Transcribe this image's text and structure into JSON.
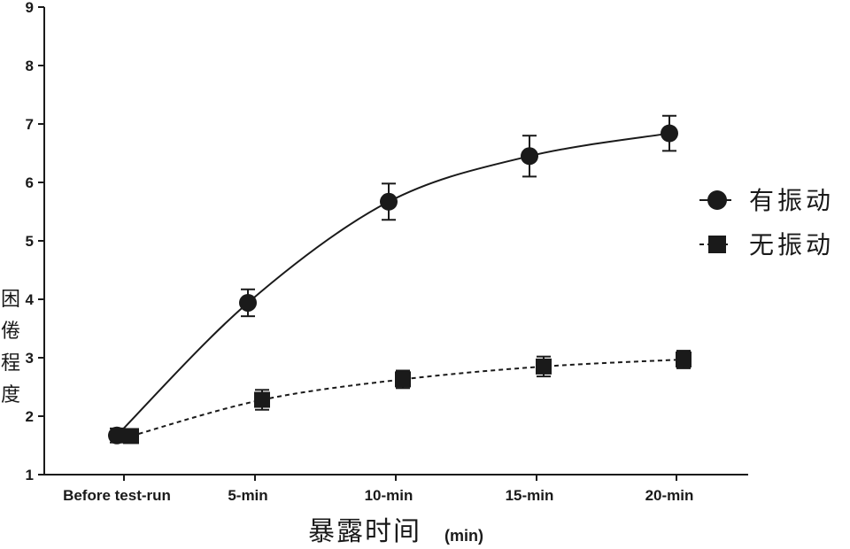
{
  "chart_data": {
    "type": "line",
    "categories": [
      "Before test-run",
      "5-min",
      "10-min",
      "15-min",
      "20-min"
    ],
    "series": [
      {
        "name": "有振动",
        "marker": "circle",
        "line": "solid",
        "values": [
          1.67,
          3.94,
          5.67,
          6.45,
          6.84
        ],
        "error": [
          0.12,
          0.23,
          0.31,
          0.35,
          0.3
        ]
      },
      {
        "name": "无振动",
        "marker": "square",
        "line": "dashed",
        "values": [
          1.66,
          2.28,
          2.63,
          2.85,
          2.97
        ],
        "error": [
          0.1,
          0.17,
          0.15,
          0.17,
          0.15
        ]
      }
    ],
    "ylim": [
      1,
      9
    ],
    "yticks": [
      "1",
      "2",
      "3",
      "4",
      "5",
      "6",
      "7",
      "8",
      "9"
    ],
    "xlabel": "暴露时间",
    "xlabel_unit": "(min)",
    "ylabel": "困倦程度",
    "legend_position": "right",
    "grid": false,
    "colors": {
      "ink": "#1a1a1a",
      "background": "#ffffff"
    }
  }
}
